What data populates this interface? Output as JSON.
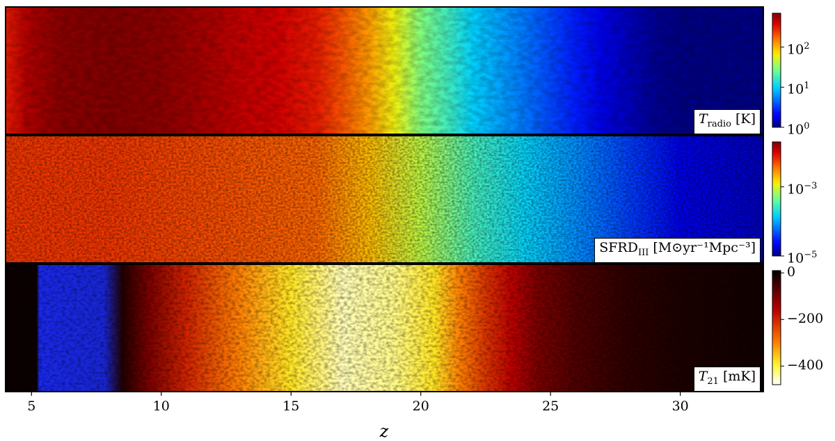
{
  "chart_data": {
    "type": "heatmap",
    "xlabel": "z",
    "xlim": [
      4.0,
      33.2
    ],
    "x_ticks": [
      5,
      10,
      15,
      20,
      25,
      30
    ],
    "panels": [
      {
        "name": "T_radio",
        "label": {
          "base": "T",
          "sub": "radio",
          "unit": " [K]"
        },
        "scale": "log",
        "colormap": "jet",
        "color_range": [
          1,
          700
        ],
        "colorbar_ticks": [
          {
            "value": 100,
            "base": "10",
            "exp": "2"
          },
          {
            "value": 10,
            "base": "10",
            "exp": "1"
          },
          {
            "value": 1,
            "base": "10",
            "exp": "0"
          }
        ],
        "profile": {
          "z": [
            4.0,
            4.8,
            6.0,
            8.0,
            10.0,
            12.0,
            13.0,
            14.5,
            16.0,
            17.0,
            18.0,
            19.0,
            20.0,
            21.0,
            22.0,
            23.0,
            24.0,
            25.0,
            26.0,
            27.0,
            28.0,
            29.0,
            30.0,
            33.2
          ],
          "value": [
            300,
            500,
            650,
            700,
            650,
            520,
            450,
            400,
            300,
            200,
            120,
            60,
            30,
            18,
            10,
            7,
            5,
            3.5,
            2.5,
            1.8,
            1.4,
            1.1,
            1.0,
            1.0
          ]
        }
      },
      {
        "name": "SFRD_III",
        "label": {
          "base": "SFRD",
          "sub": "III",
          "unit": " [M⊙yr⁻¹Mpc⁻³]"
        },
        "scale": "log",
        "colormap": "jet",
        "color_range": [
          1e-05,
          0.02
        ],
        "colorbar_ticks": [
          {
            "value": 0.001,
            "base": "10",
            "exp": "−3"
          },
          {
            "value": 1e-05,
            "base": "10",
            "exp": "−5"
          }
        ],
        "profile": {
          "z": [
            4.0,
            8.0,
            12.0,
            16.0,
            18.0,
            20.0,
            22.0,
            24.0,
            26.0,
            28.0,
            30.0,
            33.2
          ],
          "value": [
            0.006,
            0.006,
            0.005,
            0.004,
            0.002,
            0.0008,
            0.0003,
            0.00015,
            8e-05,
            4e-05,
            2e-05,
            1.5e-05
          ]
        }
      },
      {
        "name": "T_21",
        "label": {
          "base": "T",
          "sub": "21",
          "unit": " [mK]"
        },
        "scale": "linear",
        "colormap": "hot",
        "color_range": [
          -480,
          10
        ],
        "colorbar_ticks": [
          {
            "value": 0,
            "text": "0"
          },
          {
            "value": -200,
            "text": "−200"
          },
          {
            "value": -400,
            "text": "−400"
          }
        ],
        "profile": {
          "z": [
            4.0,
            5.2,
            5.3,
            7.8,
            8.5,
            9.5,
            11.0,
            13.0,
            15.0,
            17.0,
            19.0,
            20.5,
            21.5,
            22.5,
            23.5,
            24.5,
            26.0,
            28.0,
            30.0,
            33.2
          ],
          "value": [
            0,
            0,
            60,
            50,
            -20,
            -100,
            -200,
            -300,
            -380,
            -450,
            -430,
            -380,
            -300,
            -220,
            -160,
            -100,
            -60,
            -30,
            -15,
            -5
          ]
        }
      }
    ]
  }
}
